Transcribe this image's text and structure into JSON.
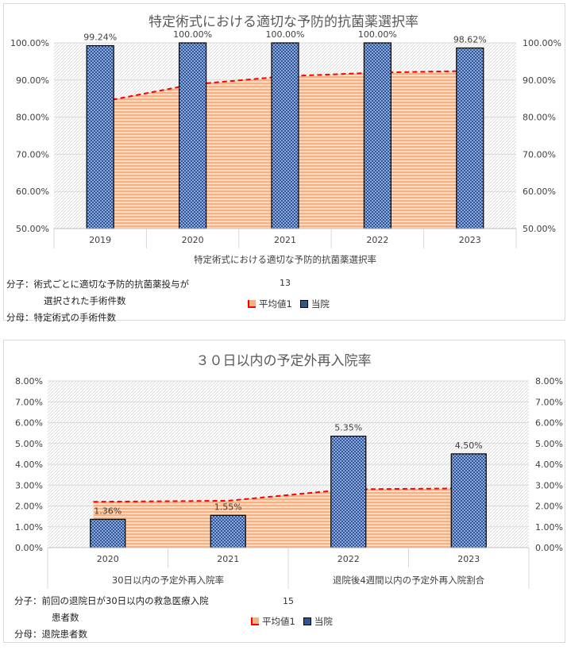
{
  "charts": [
    {
      "title": "特定術式における適切な予防的抗菌薬選択率",
      "notes": {
        "numerator_label": "分子：術式ごとに適切な予防的抗菌薬投与が",
        "numerator_cont": "選択された手術件数",
        "denominator": "分母：特定術式の手術件数"
      },
      "page_number": "13",
      "legend": {
        "avg": "平均値1",
        "ours": "当院"
      }
    },
    {
      "title": "３０日以内の予定外再入院率",
      "notes": {
        "numerator_label": "分子：前回の退院日が30日以内の救急医療入院",
        "numerator_cont": "患者数",
        "denominator": "分母：退院患者数"
      },
      "page_number": "15",
      "legend": {
        "avg": "平均値1",
        "ours": "当院"
      }
    }
  ],
  "chart_data": [
    {
      "type": "bar",
      "title": "特定術式における適切な予防的抗菌薬選択率",
      "categories": [
        "2019",
        "2020",
        "2021",
        "2022",
        "2023"
      ],
      "group_labels": [
        "特定術式における適切な予防的抗菌薬選択率"
      ],
      "series": [
        {
          "name": "当院",
          "type": "bar",
          "values": [
            99.24,
            100.0,
            100.0,
            100.0,
            98.62
          ],
          "labels": [
            "99.24%",
            "100.00%",
            "100.00%",
            "100.00%",
            "98.62%"
          ]
        },
        {
          "name": "平均値1",
          "type": "area",
          "values": [
            83.5,
            88.8,
            91.0,
            92.0,
            92.5
          ]
        }
      ],
      "ylim": [
        50,
        100
      ],
      "yticks": [
        "50.00%",
        "60.00%",
        "70.00%",
        "80.00%",
        "90.00%",
        "100.00%"
      ],
      "ytick_values": [
        50,
        60,
        70,
        80,
        90,
        100
      ],
      "colors": {
        "bar": "#2f5597",
        "area": "#f4b183",
        "avg_line": "#ff0000"
      }
    },
    {
      "type": "bar",
      "title": "３０日以内の予定外再入院率",
      "categories": [
        "2020",
        "2021",
        "2022",
        "2023"
      ],
      "group_labels": [
        "30日以内の予定外再入院率",
        "退院後4週間以内の予定外再入院割合"
      ],
      "series": [
        {
          "name": "当院",
          "type": "bar",
          "values": [
            1.36,
            1.55,
            5.35,
            4.5
          ],
          "labels": [
            "1.36%",
            "1.55%",
            "5.35%",
            "4.50%"
          ]
        },
        {
          "name": "平均値1",
          "type": "area",
          "values": [
            2.2,
            2.25,
            2.8,
            2.85
          ]
        }
      ],
      "ylim": [
        0,
        8
      ],
      "yticks": [
        "0.00%",
        "1.00%",
        "2.00%",
        "3.00%",
        "4.00%",
        "5.00%",
        "6.00%",
        "7.00%",
        "8.00%"
      ],
      "ytick_values": [
        0,
        1,
        2,
        3,
        4,
        5,
        6,
        7,
        8
      ],
      "colors": {
        "bar": "#2f5597",
        "area": "#f4b183",
        "avg_line": "#ff0000"
      }
    }
  ]
}
